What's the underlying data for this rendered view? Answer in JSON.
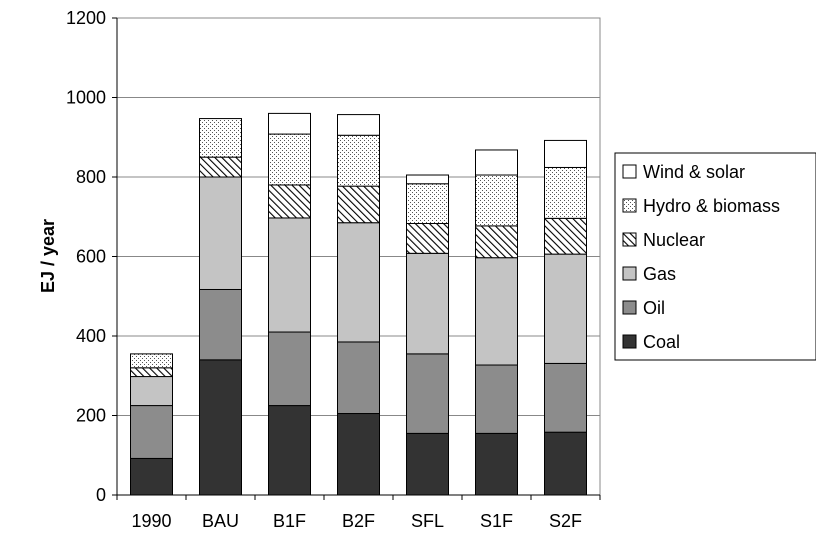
{
  "chart_data": {
    "type": "bar",
    "stacked": true,
    "title": "",
    "xlabel": "",
    "ylabel": "EJ / year",
    "ylim": [
      0,
      1200
    ],
    "yticks": [
      0,
      200,
      400,
      600,
      800,
      1000,
      1200
    ],
    "grid": true,
    "legend_position": "right",
    "categories": [
      "1990",
      "BAU",
      "B1F",
      "B2F",
      "SFL",
      "S1F",
      "S2F"
    ],
    "series": [
      {
        "name": "Coal",
        "fill": "#333333",
        "pattern": "solid",
        "values": [
          92,
          340,
          225,
          205,
          155,
          155,
          158
        ]
      },
      {
        "name": "Oil",
        "fill": "#8c8c8c",
        "pattern": "solid",
        "values": [
          133,
          177,
          185,
          180,
          200,
          172,
          173
        ]
      },
      {
        "name": "Gas",
        "fill": "#c4c4c4",
        "pattern": "solid",
        "values": [
          73,
          283,
          287,
          300,
          253,
          270,
          275
        ]
      },
      {
        "name": "Nuclear",
        "fill": "#ffffff",
        "pattern": "hatch",
        "values": [
          22,
          50,
          83,
          92,
          75,
          80,
          90
        ]
      },
      {
        "name": "Hydro & biomass",
        "fill": "#ffffff",
        "pattern": "dots",
        "values": [
          35,
          97,
          128,
          128,
          100,
          128,
          128
        ]
      },
      {
        "name": "Wind & solar",
        "fill": "#ffffff",
        "pattern": "solid",
        "values": [
          0,
          0,
          52,
          52,
          22,
          63,
          68
        ]
      }
    ]
  }
}
